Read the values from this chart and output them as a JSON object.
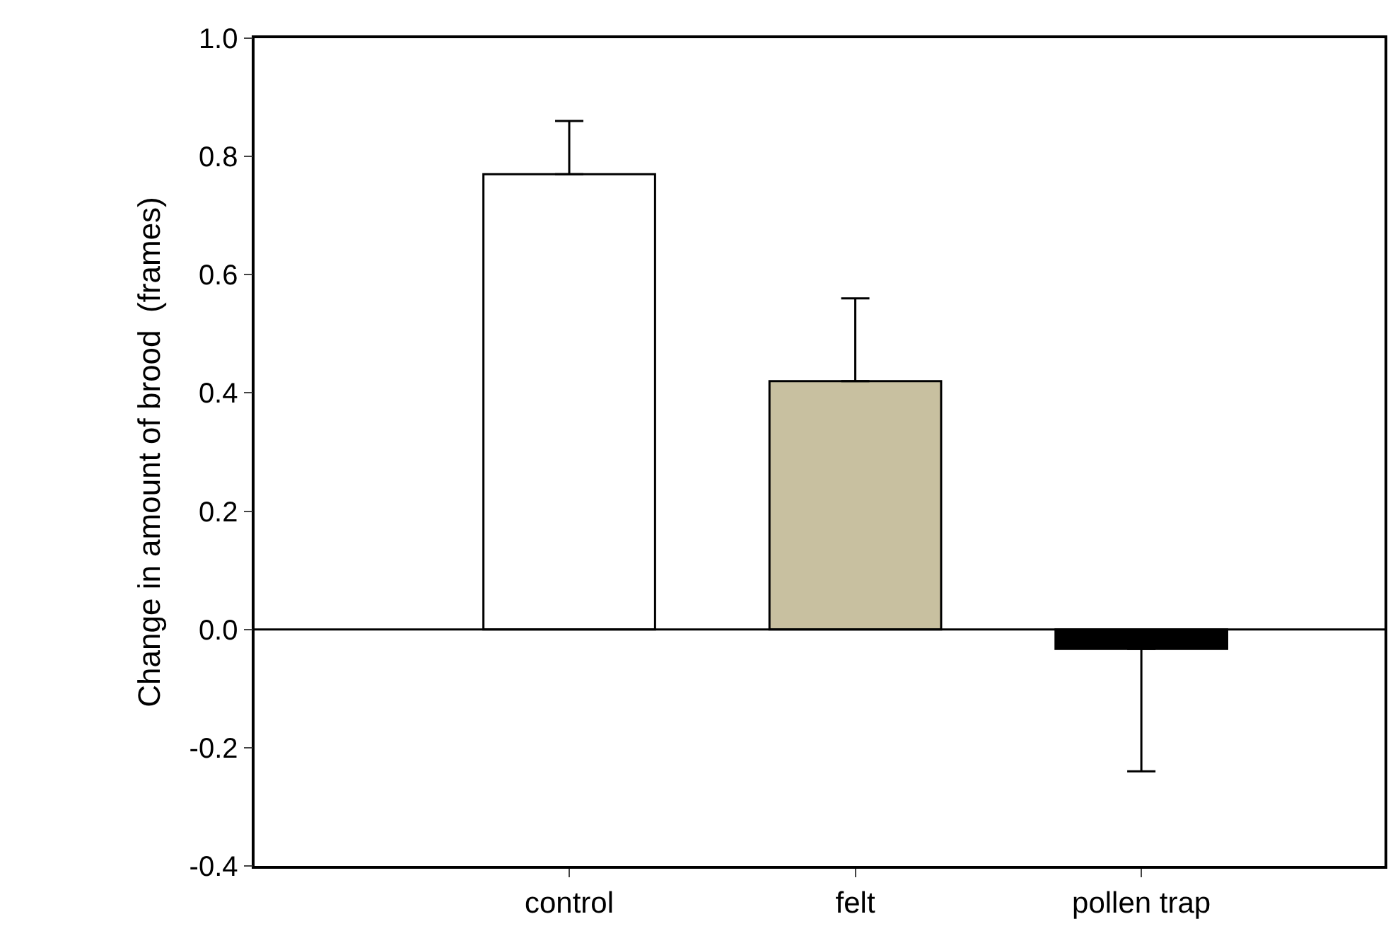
{
  "chart_data": {
    "type": "bar",
    "ylabel": "Change in amount of brood  (frames)",
    "categories": [
      "control",
      "felt",
      "pollen trap"
    ],
    "values": [
      0.77,
      0.42,
      -0.033
    ],
    "colors": [
      "#ffffff",
      "#c8c0a0",
      "#000000"
    ],
    "errors": [
      [
        0.77,
        0.86
      ],
      [
        0.42,
        0.56
      ],
      [
        -0.24,
        -0.033
      ]
    ],
    "ylim": [
      -0.4,
      1.0
    ],
    "yticks": [
      {
        "value": -0.4,
        "label": "-0.4"
      },
      {
        "value": -0.2,
        "label": "-0.2"
      },
      {
        "value": 0,
        "label": "0.0"
      },
      {
        "value": 0.2,
        "label": "0.2"
      },
      {
        "value": 0.4,
        "label": "0.4"
      },
      {
        "value": 0.6,
        "label": "0.6"
      },
      {
        "value": 0.8,
        "label": "0.8"
      },
      {
        "value": 1.0,
        "label": "1.0"
      }
    ],
    "ref_lines": [
      {
        "axis": "y",
        "value": 0,
        "color": "#000000"
      }
    ]
  }
}
